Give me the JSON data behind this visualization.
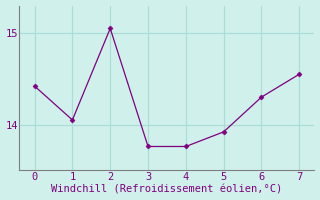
{
  "x": [
    0,
    1,
    2,
    3,
    4,
    5,
    6,
    7
  ],
  "y": [
    14.42,
    14.05,
    15.05,
    13.76,
    13.76,
    13.92,
    14.3,
    14.55
  ],
  "line_color": "#800080",
  "marker": "D",
  "marker_size": 2.5,
  "bg_color": "#cff0eb",
  "grid_color": "#aaddd7",
  "xlabel": "Windchill (Refroidissement éolien,°C)",
  "xlabel_color": "#800080",
  "tick_color": "#800080",
  "spine_color": "#808080",
  "yticks": [
    14,
    15
  ],
  "xticks": [
    0,
    1,
    2,
    3,
    4,
    5,
    6,
    7
  ],
  "xlim": [
    -0.4,
    7.4
  ],
  "ylim": [
    13.5,
    15.3
  ],
  "xlabel_fontsize": 7.5,
  "tick_fontsize": 7.5
}
